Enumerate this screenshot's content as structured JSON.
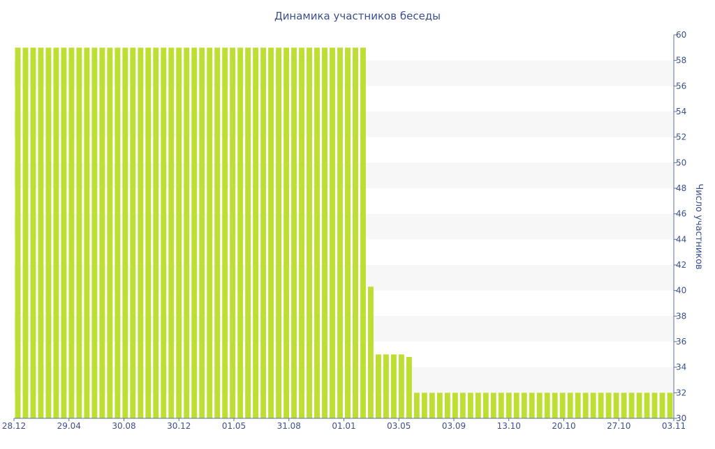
{
  "chart_data": {
    "type": "bar",
    "title": "Динамика участников беседы",
    "xlabel": "",
    "ylabel": "Число участников",
    "ylim": [
      30,
      60
    ],
    "y_ticks": [
      30,
      32,
      34,
      36,
      38,
      40,
      42,
      44,
      46,
      48,
      50,
      52,
      54,
      56,
      58,
      60
    ],
    "y_axis_side": "right",
    "x_tick_labels": [
      "28.12",
      "29.04",
      "30.08",
      "30.12",
      "01.05",
      "31.08",
      "01.01",
      "03.05",
      "03.09",
      "13.10",
      "20.10",
      "27.10",
      "03.11"
    ],
    "grid": "alternating horizontal bands",
    "colors": {
      "bar": "#bddf33",
      "band": "#f7f7f7",
      "text": "#3b4f8c",
      "axis": "#5a6f9e"
    },
    "values": [
      59,
      59,
      59,
      59,
      59,
      59,
      59,
      59,
      59,
      59,
      59,
      59,
      59,
      59,
      59,
      59,
      59,
      59,
      59,
      59,
      59,
      59,
      59,
      59,
      59,
      59,
      59,
      59,
      59,
      59,
      59,
      59,
      59,
      59,
      59,
      59,
      59,
      59,
      59,
      59,
      59,
      59,
      59,
      59,
      59,
      59,
      40.3,
      35,
      35,
      35,
      35,
      34.8,
      32,
      32,
      32,
      32,
      32,
      32,
      32,
      32,
      32,
      32,
      32,
      32,
      32,
      32,
      32,
      32,
      32,
      32,
      32,
      32,
      32,
      32,
      32,
      32,
      32,
      32,
      32,
      32,
      32,
      32,
      32,
      32,
      32,
      32
    ]
  }
}
